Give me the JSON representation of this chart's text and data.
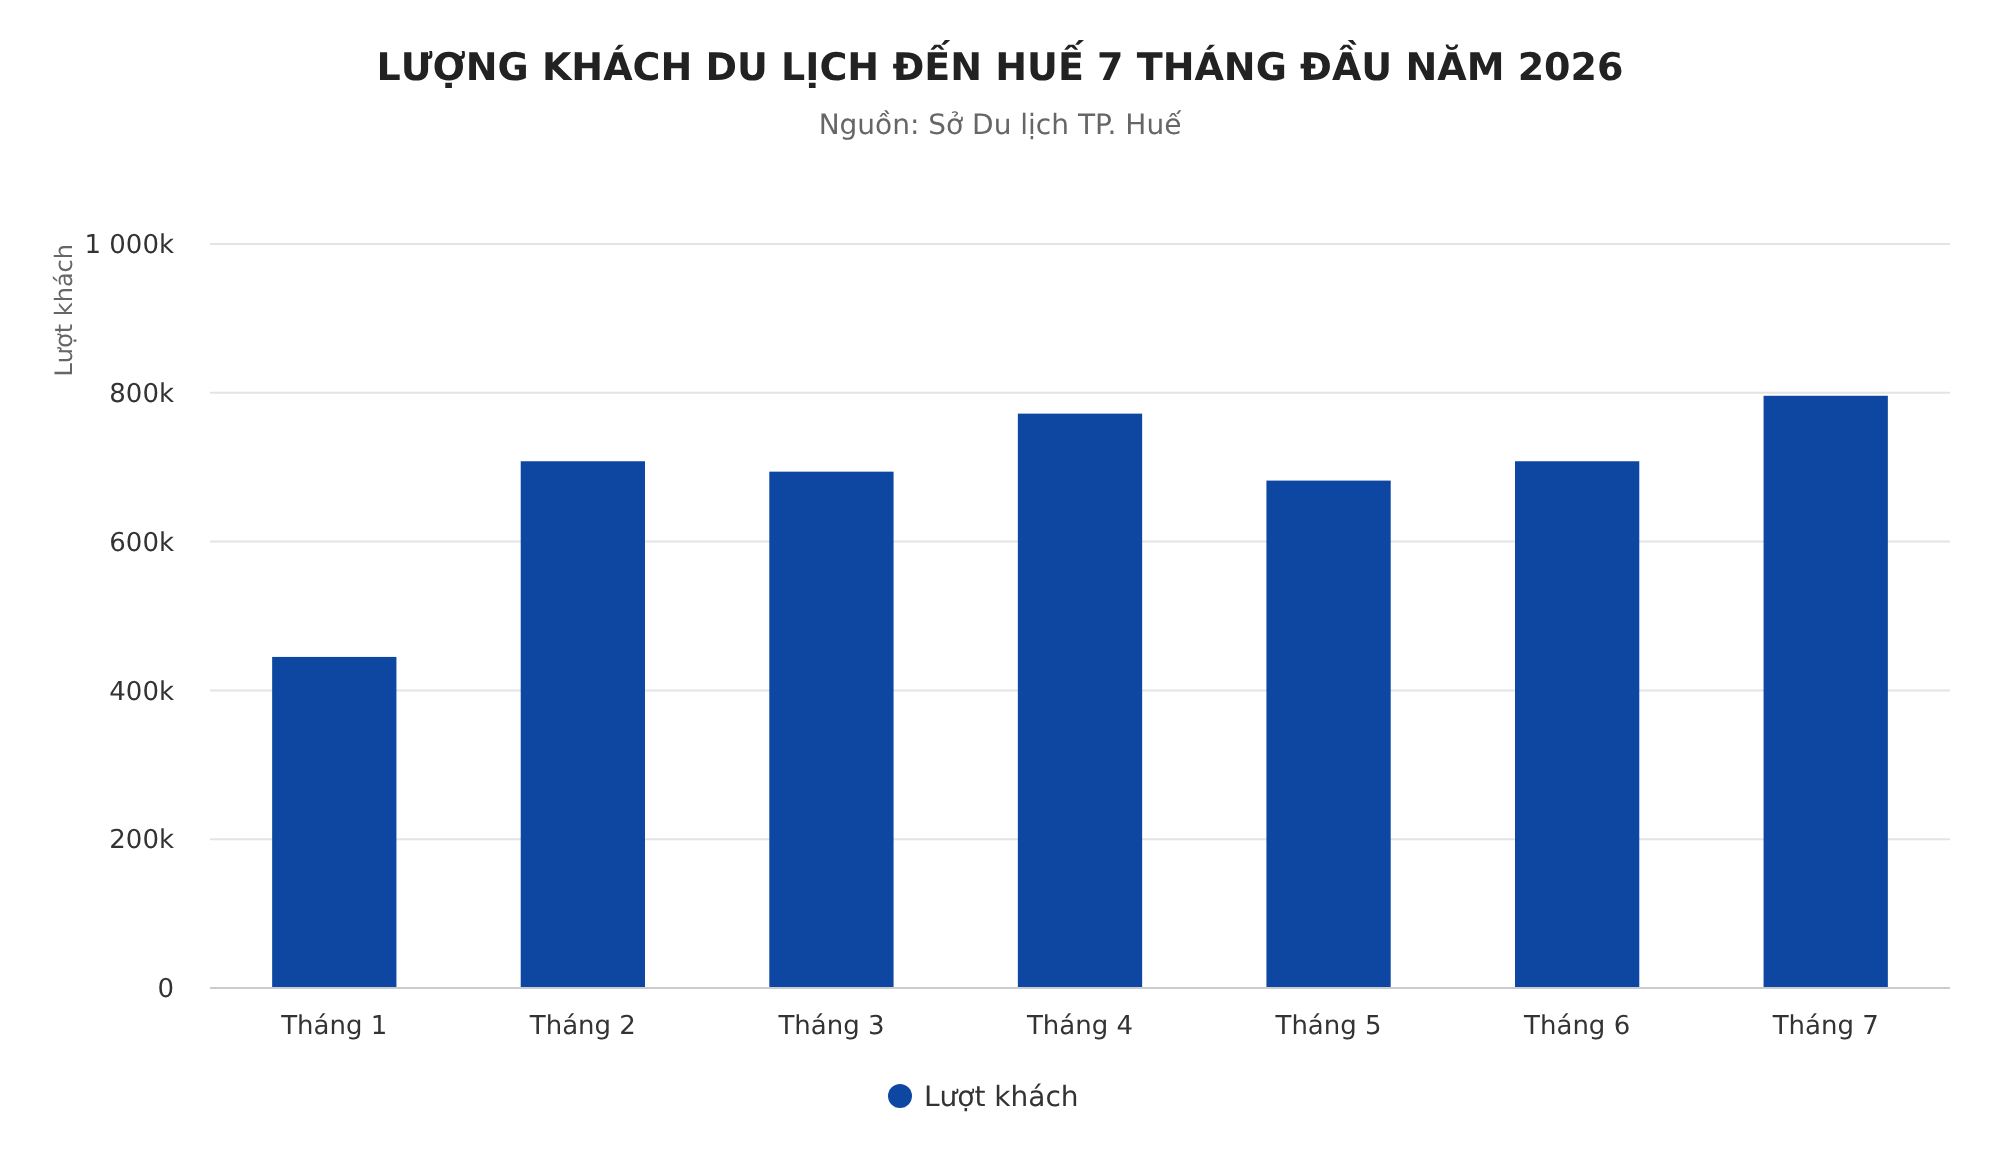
{
  "chart_data": {
    "type": "bar",
    "title": "LƯỢNG KHÁCH DU LỊCH ĐẾN HUẾ 7 THÁNG ĐẦU NĂM 2026",
    "subtitle": "Nguồn: Sở Du lịch TP. Huế",
    "ylabel": "Lượt khách",
    "categories": [
      "Tháng 1",
      "Tháng 2",
      "Tháng 3",
      "Tháng 4",
      "Tháng 5",
      "Tháng 6",
      "Tháng 7"
    ],
    "series": [
      {
        "name": "Lượt khách",
        "color": "#0e47a1",
        "values": [
          445000,
          708000,
          694000,
          772000,
          682000,
          708000,
          796000
        ]
      }
    ],
    "ylim": [
      0,
      1000000
    ],
    "yticks": [
      0,
      {
        "value": 200000,
        "label": "200k"
      },
      {
        "value": 400000,
        "label": "400k"
      },
      {
        "value": 600000,
        "label": "600k"
      },
      {
        "value": 800000,
        "label": "800k"
      },
      {
        "value": 1000000,
        "label": "1 000k"
      }
    ],
    "grid": "y",
    "legend": "bottom"
  }
}
